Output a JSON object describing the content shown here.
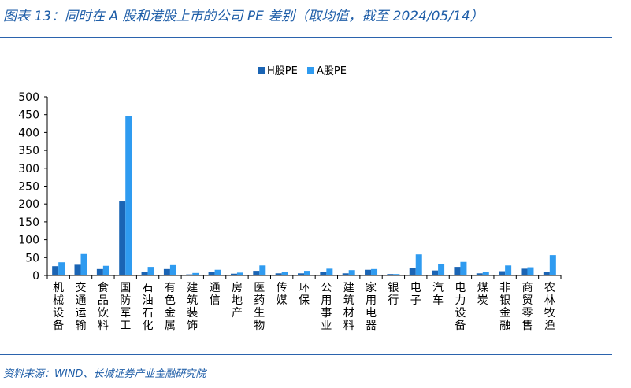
{
  "title": "图表 13：同时在 A 股和港股上市的公司 PE 差别（取均值，截至 2024/05/14）",
  "source": "资料来源：WIND、长城证券产业金融研究院",
  "colors": {
    "title": "#1f5ea8",
    "rule": "#2b63ad",
    "series_h": "#1a64b4",
    "series_a": "#2f9bf0"
  },
  "chart_data": {
    "type": "bar",
    "categories": [
      "机械设备",
      "交通运输",
      "食品饮料",
      "国防军工",
      "石油石化",
      "有色金属",
      "建筑装饰",
      "通信",
      "房地产",
      "医药生物",
      "传媒",
      "环保",
      "公用事业",
      "建筑材料",
      "家用电器",
      "银行",
      "电子",
      "汽车",
      "电力设备",
      "煤炭",
      "非银金融",
      "商贸零售",
      "农林牧渔"
    ],
    "series": [
      {
        "name": "H股PE",
        "color": "#1a64b4",
        "values": [
          26,
          30,
          18,
          207,
          10,
          18,
          3,
          10,
          5,
          13,
          6,
          6,
          11,
          6,
          16,
          4,
          20,
          14,
          24,
          6,
          12,
          19,
          10
        ]
      },
      {
        "name": "A股PE",
        "color": "#2f9bf0",
        "values": [
          37,
          60,
          27,
          445,
          24,
          29,
          7,
          16,
          8,
          28,
          11,
          13,
          19,
          15,
          18,
          4,
          59,
          33,
          38,
          11,
          28,
          23,
          57
        ]
      }
    ],
    "y_ticks": [
      "0",
      "50",
      "100",
      "150",
      "200",
      "250",
      "300",
      "350",
      "400",
      "450",
      "500"
    ],
    "ylim": [
      0,
      500
    ],
    "legend_position": "top-center",
    "grid": false
  }
}
